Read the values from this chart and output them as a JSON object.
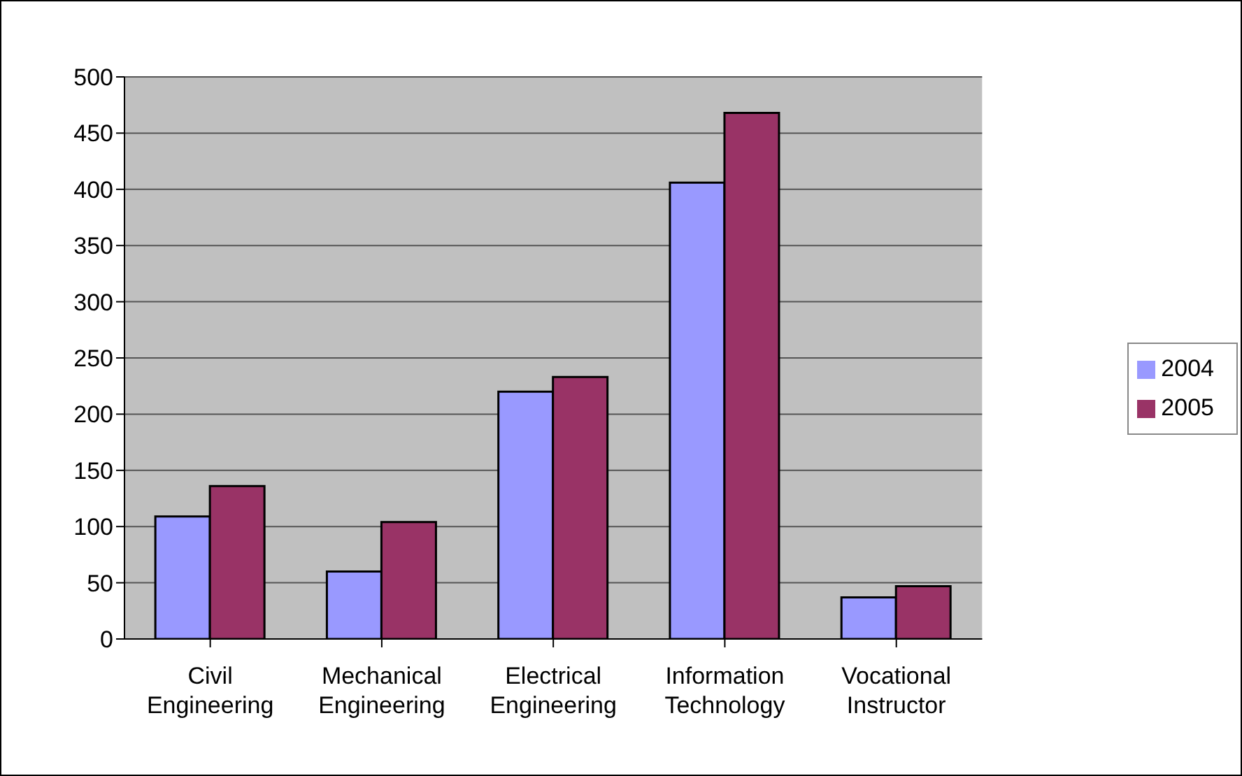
{
  "chart_data": {
    "type": "bar",
    "categories": [
      "Civil Engineering",
      "Mechanical Engineering",
      "Electrical Engineering",
      "Information Technology",
      "Vocational Instructor"
    ],
    "series": [
      {
        "name": "2004",
        "color": "#9999ff",
        "values": [
          109,
          60,
          220,
          406,
          37
        ]
      },
      {
        "name": "2005",
        "color": "#993366",
        "values": [
          136,
          104,
          233,
          468,
          47
        ]
      }
    ],
    "ylim": [
      0,
      500
    ],
    "yticks": [
      0,
      50,
      100,
      150,
      200,
      250,
      300,
      350,
      400,
      450,
      500
    ],
    "grid": "y",
    "legend": "right"
  }
}
